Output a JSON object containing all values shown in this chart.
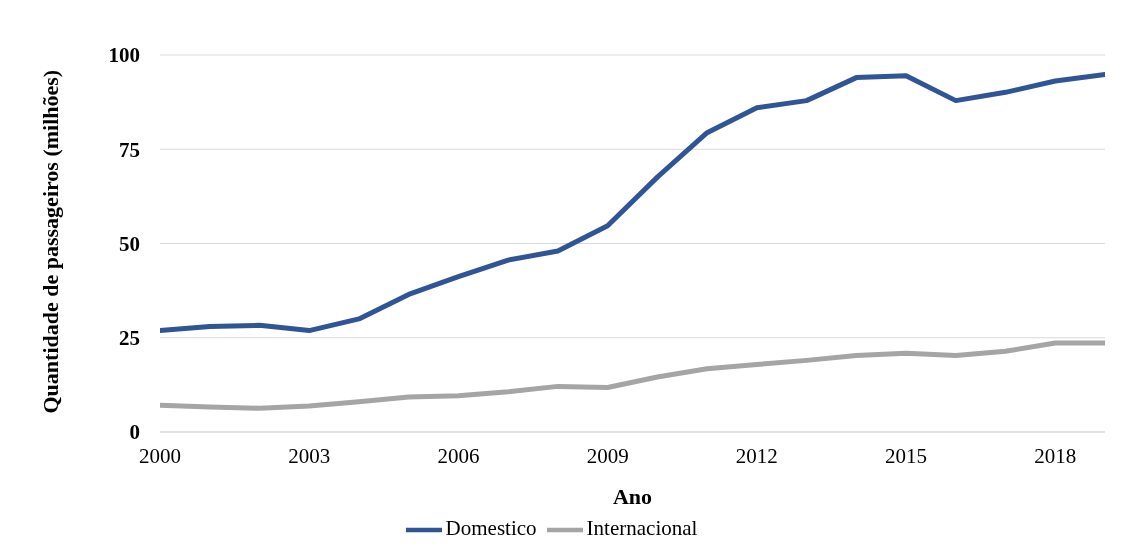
{
  "chart_data": {
    "type": "line",
    "xlabel": "Ano",
    "ylabel": "Quantidade de passageiros (milhões)",
    "x": [
      2000,
      2001,
      2002,
      2003,
      2004,
      2005,
      2006,
      2007,
      2008,
      2009,
      2010,
      2011,
      2012,
      2013,
      2014,
      2015,
      2016,
      2017,
      2018,
      2019
    ],
    "series": [
      {
        "name": "Domestico",
        "color": "#2f5597",
        "values": [
          26.9,
          28,
          28.3,
          26.9,
          30,
          36.5,
          41.2,
          45.6,
          48,
          54.7,
          67.6,
          79.4,
          86,
          87.9,
          94,
          94.5,
          87.9,
          90.1,
          93.1,
          94.8
        ]
      },
      {
        "name": "Internacional",
        "color": "#a5a5a5",
        "values": [
          7.1,
          6.6,
          6.3,
          6.9,
          8,
          9.3,
          9.6,
          10.7,
          12.1,
          11.8,
          14.6,
          16.8,
          17.9,
          19,
          20.3,
          20.9,
          20.3,
          21.4,
          23.6,
          23.6
        ]
      }
    ],
    "xlim": [
      2000,
      2019
    ],
    "xticks": [
      2000,
      2003,
      2006,
      2009,
      2012,
      2015,
      2018
    ],
    "ylim": [
      0,
      100
    ],
    "yticks": [
      0,
      25,
      50,
      75,
      100
    ],
    "grid": "y",
    "legend": "bottom",
    "marker": "none",
    "line_style": "solid"
  }
}
